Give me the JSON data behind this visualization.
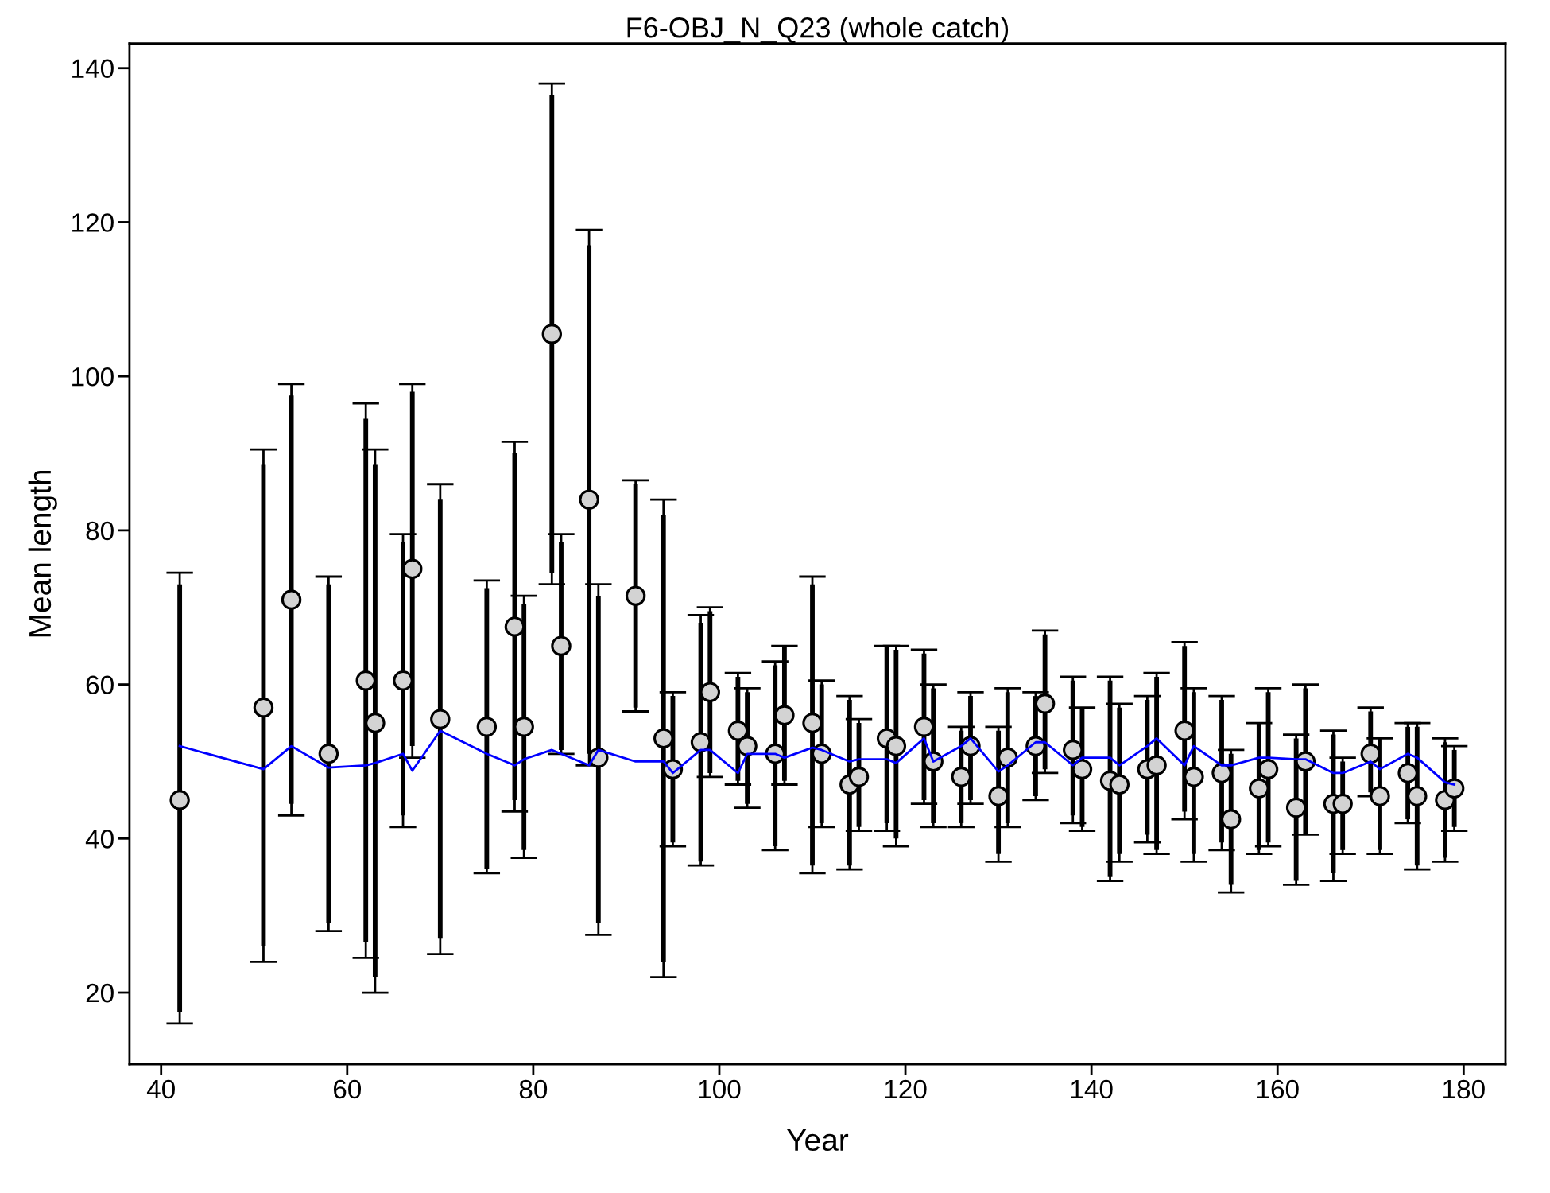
{
  "chart_data": {
    "type": "scatter",
    "title": "F6-OBJ_N_Q23 (whole catch)",
    "xlabel": "Year",
    "ylabel": "Mean length",
    "x": [
      42,
      51,
      54,
      58,
      62,
      63,
      66,
      67,
      70,
      75,
      78,
      79,
      82,
      83,
      86,
      87,
      91,
      94,
      95,
      98,
      99,
      102,
      103,
      106,
      107,
      110,
      111,
      114,
      115,
      118,
      119,
      122,
      123,
      126,
      127,
      130,
      131,
      134,
      135,
      138,
      139,
      142,
      143,
      146,
      147,
      150,
      151,
      154,
      155,
      158,
      159,
      162,
      163,
      166,
      167,
      170,
      171,
      174,
      175,
      178,
      179
    ],
    "series": [
      {
        "marker": "circle",
        "color": "#d3d3d3",
        "values": [
          45,
          57,
          71,
          51,
          60.5,
          55,
          60.5,
          75,
          55.5,
          54.5,
          67.5,
          54.5,
          105.5,
          65,
          84,
          50.5,
          71.5,
          53,
          49,
          52.5,
          59,
          54,
          52,
          51,
          56,
          55,
          51,
          47,
          48,
          53,
          52,
          54.5,
          50,
          48,
          52,
          45.5,
          50.5,
          52,
          57.5,
          51.5,
          49,
          47.5,
          47,
          49,
          49.5,
          54,
          48,
          48.5,
          42.5,
          46.5,
          49,
          44,
          50,
          44.5,
          44.5,
          51,
          45.5,
          48.5,
          45.5,
          45,
          46.5
        ],
        "errors": [
          [
            16,
            74.5
          ],
          [
            24,
            90.5
          ],
          [
            43,
            99
          ],
          [
            28,
            74
          ],
          [
            24.5,
            96.5
          ],
          [
            20,
            90.5
          ],
          [
            41.5,
            79.5
          ],
          [
            50.5,
            99
          ],
          [
            25,
            86
          ],
          [
            35.5,
            73.5
          ],
          [
            43.5,
            91.5
          ],
          [
            37.5,
            71.5
          ],
          [
            73,
            138
          ],
          [
            51,
            79.5
          ],
          [
            49.5,
            119
          ],
          [
            27.5,
            73
          ],
          [
            56.5,
            86.5
          ],
          [
            22,
            84
          ],
          [
            39,
            59
          ],
          [
            36.5,
            69
          ],
          [
            48,
            70
          ],
          [
            47,
            61.5
          ],
          [
            44,
            59.5
          ],
          [
            38.5,
            63
          ],
          [
            47,
            65
          ],
          [
            35.5,
            74
          ],
          [
            41.5,
            60.5
          ],
          [
            36,
            58.5
          ],
          [
            41,
            55.5
          ],
          [
            41,
            65
          ],
          [
            39,
            65
          ],
          [
            44.5,
            64.5
          ],
          [
            41.5,
            60
          ],
          [
            41.5,
            54.5
          ],
          [
            44.5,
            59
          ],
          [
            37,
            54.5
          ],
          [
            41.5,
            59.5
          ],
          [
            45,
            59
          ],
          [
            48.5,
            67
          ],
          [
            42,
            61
          ],
          [
            41,
            57
          ],
          [
            34.5,
            61
          ],
          [
            37,
            57.5
          ],
          [
            39.5,
            58.5
          ],
          [
            38,
            61.5
          ],
          [
            42.5,
            65.5
          ],
          [
            37,
            59.5
          ],
          [
            38.5,
            58.5
          ],
          [
            33,
            51.5
          ],
          [
            38,
            55
          ],
          [
            39,
            59.5
          ],
          [
            34,
            53.5
          ],
          [
            40.5,
            60
          ],
          [
            34.5,
            54
          ],
          [
            38,
            50.5
          ],
          [
            45.5,
            57
          ],
          [
            38,
            53
          ],
          [
            42,
            55
          ],
          [
            36,
            55
          ],
          [
            37,
            53
          ],
          [
            41,
            52
          ]
        ]
      },
      {
        "type": "bar",
        "color": "#000000",
        "base": [
          17.5,
          26,
          44.5,
          29,
          26.5,
          22,
          43,
          52,
          27,
          36,
          45,
          38.5,
          74.5,
          51.5,
          51,
          29,
          57,
          24,
          39.5,
          37,
          48.5,
          47.5,
          44.5,
          39,
          47.5,
          36.5,
          42,
          36.5,
          41.5,
          42,
          40,
          45,
          42,
          42,
          45,
          38,
          42,
          45.5,
          49,
          43,
          41.5,
          35,
          38,
          40.5,
          38.5,
          43.5,
          38,
          39.5,
          34,
          38.5,
          39.5,
          34.5,
          40.5,
          35.5,
          38.5,
          46,
          38.5,
          42.5,
          36.5,
          37.5,
          41.5
        ],
        "values": [
          55.5,
          62.5,
          53,
          44,
          68,
          66.5,
          35.5,
          46,
          57,
          36.5,
          45,
          32,
          62,
          27,
          66,
          42.5,
          29,
          58,
          19,
          31,
          21,
          13.5,
          14.5,
          23.5,
          17.5,
          36.5,
          18,
          21.5,
          13.5,
          23,
          24.5,
          19,
          17.5,
          12,
          13.5,
          16,
          17,
          13,
          17.5,
          17.5,
          15.5,
          25.5,
          19,
          17.5,
          22.5,
          21.5,
          21,
          18.5,
          17,
          16.5,
          19.5,
          18.5,
          19,
          18,
          11.5,
          10.5,
          14.5,
          12,
          18,
          15,
          10
        ]
      },
      {
        "type": "line",
        "marker": "none",
        "color": "#0000ff",
        "line_style": "solid",
        "values": [
          52,
          49,
          52,
          49.2,
          49.5,
          49.8,
          51,
          48.8,
          54,
          51,
          49.5,
          50.3,
          51.5,
          51,
          49.5,
          51.5,
          50,
          50,
          48.5,
          51.5,
          51.5,
          48.5,
          51,
          51,
          50.5,
          51.8,
          51.5,
          50,
          50.3,
          50.3,
          49.8,
          53,
          50,
          52,
          53,
          48.7,
          49.5,
          52.5,
          52.5,
          49.5,
          50.5,
          50.5,
          49.5,
          52,
          53,
          49.5,
          52,
          49.5,
          49.5,
          50.5,
          50.5,
          50.3,
          50.3,
          48.5,
          48.5,
          50,
          49,
          51,
          50.5,
          47.3,
          47
        ]
      }
    ],
    "xlim": [
      36.6,
      184.5
    ],
    "xticks": [
      40,
      60,
      80,
      100,
      120,
      140,
      160,
      180
    ],
    "ylim": [
      10.7,
      143.2
    ],
    "yticks": [
      20,
      40,
      60,
      80,
      100,
      120,
      140
    ],
    "grid": false,
    "legend": false
  }
}
